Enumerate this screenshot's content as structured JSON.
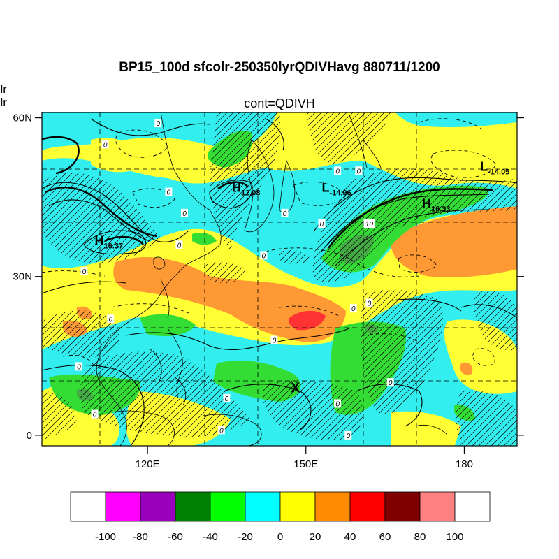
{
  "title": "BP15_100d sfcolr-250350lyrQDIVHavg  880711/1200",
  "subtitle": "cont=QDIVH",
  "left_text": [
    "olr",
    "olr"
  ],
  "axes": {
    "lat_ticks": [
      {
        "label": "60N",
        "value": 60
      },
      {
        "label": "30N",
        "value": 30
      },
      {
        "label": "0",
        "value": 0
      }
    ],
    "lon_ticks": [
      {
        "label": "120E",
        "value": 120
      },
      {
        "label": "150E",
        "value": 150
      },
      {
        "label": "180",
        "value": 180
      }
    ],
    "lon_range": [
      100,
      190
    ],
    "lat_range": [
      -2,
      61
    ]
  },
  "pressure_labels": [
    {
      "letter": "H",
      "value": "12.08",
      "lon": 136,
      "lat": 46
    },
    {
      "letter": "L",
      "value": "-14.96",
      "lon": 153,
      "lat": 46
    },
    {
      "letter": "H",
      "value": "16.33",
      "lon": 172,
      "lat": 43
    },
    {
      "letter": "L",
      "value": "-14.05",
      "lon": 183,
      "lat": 50
    },
    {
      "letter": "H",
      "value": "16.37",
      "lon": 110,
      "lat": 36
    }
  ],
  "marker": {
    "text": "X",
    "lon": 148,
    "lat": 9
  },
  "contour_labels": [
    {
      "text": "0",
      "lon": 122,
      "lat": 59
    },
    {
      "text": "0",
      "lon": 112,
      "lat": 55
    },
    {
      "text": "0",
      "lon": 124,
      "lat": 46
    },
    {
      "text": "0",
      "lon": 127,
      "lat": 42
    },
    {
      "text": "0",
      "lon": 126,
      "lat": 36
    },
    {
      "text": "0",
      "lon": 108,
      "lat": 31
    },
    {
      "text": "0",
      "lon": 113,
      "lat": 22
    },
    {
      "text": "0",
      "lon": 107,
      "lat": 13
    },
    {
      "text": "0",
      "lon": 110,
      "lat": 4
    },
    {
      "text": "0",
      "lon": 135,
      "lat": 7
    },
    {
      "text": "0",
      "lon": 134,
      "lat": 1
    },
    {
      "text": "0",
      "lon": 142,
      "lat": 34
    },
    {
      "text": "0",
      "lon": 146,
      "lat": 42
    },
    {
      "text": "0",
      "lon": 153,
      "lat": 40
    },
    {
      "text": "0",
      "lon": 156,
      "lat": 50
    },
    {
      "text": "0",
      "lon": 160,
      "lat": 50
    },
    {
      "text": "10",
      "lon": 162,
      "lat": 40
    },
    {
      "text": "0",
      "lon": 159,
      "lat": 24
    },
    {
      "text": "0",
      "lon": 162,
      "lat": 25
    },
    {
      "text": "0",
      "lon": 144,
      "lat": 18
    },
    {
      "text": "0",
      "lon": 166,
      "lat": 10
    },
    {
      "text": "0",
      "lon": 156,
      "lat": 6
    },
    {
      "text": "0",
      "lon": 158,
      "lat": 0
    }
  ],
  "colorbar": {
    "labels": [
      "-100",
      "-80",
      "-60",
      "-40",
      "-20",
      "0",
      "20",
      "40",
      "60",
      "80",
      "100"
    ],
    "colors": [
      "#ffffff",
      "#ff00ff",
      "#9900bb",
      "#008000",
      "#00ff00",
      "#00ffff",
      "#ffff00",
      "#ff8c00",
      "#ff0000",
      "#800000",
      "#ff8080",
      "#ffffff"
    ]
  },
  "shade_colors": {
    "cyan": "#33eeee",
    "yellow": "#ffff33",
    "orange": "#ff9933",
    "lightgreen": "#33dd33",
    "darkgreen": "#44aa44",
    "red": "#ff3333"
  }
}
